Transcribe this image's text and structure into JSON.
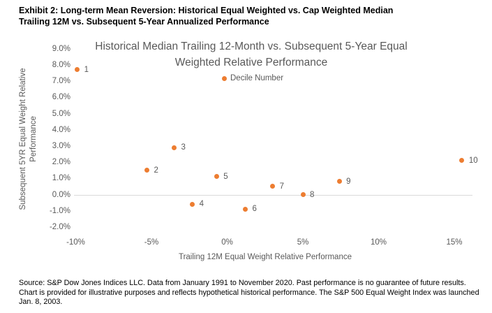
{
  "header": {
    "line1": "Exhibit 2: Long-term Mean Reversion: Historical Equal Weighted vs. Cap Weighted Median",
    "line2": "Trailing 12M vs. Subsequent 5-Year Annualized Performance"
  },
  "chart_data": {
    "type": "scatter",
    "title_line1": "Historical Median Trailing 12-Month vs. Subsequent 5-Year Equal",
    "title_line2": "Weighted Relative Performance",
    "xlabel": "Trailing 12M Equal Weight Relative Performance",
    "ylabel": "Subsequent 5YR Equal Weight Relative Performance",
    "legend_label": "Decile Number",
    "legend_position": "inside-top-center",
    "grid": "horizontal zero line only",
    "xlim": [
      -10,
      15
    ],
    "ylim": [
      -2,
      9
    ],
    "x_ticks": [
      {
        "label": "-10%",
        "value": -10
      },
      {
        "label": "-5%",
        "value": -5
      },
      {
        "label": "0%",
        "value": 0
      },
      {
        "label": "5%",
        "value": 5
      },
      {
        "label": "10%",
        "value": 10
      },
      {
        "label": "15%",
        "value": 15
      }
    ],
    "y_ticks": [
      {
        "label": "9.0%",
        "value": 9
      },
      {
        "label": "8.0%",
        "value": 8
      },
      {
        "label": "7.0%",
        "value": 7
      },
      {
        "label": "6.0%",
        "value": 6
      },
      {
        "label": "5.0%",
        "value": 5
      },
      {
        "label": "4.0%",
        "value": 4
      },
      {
        "label": "3.0%",
        "value": 3
      },
      {
        "label": "2.0%",
        "value": 2
      },
      {
        "label": "1.0%",
        "value": 1
      },
      {
        "label": "0.0%",
        "value": 0
      },
      {
        "label": "-1.0%",
        "value": -1
      },
      {
        "label": "-2.0%",
        "value": -2
      }
    ],
    "marker_color": "#ED7D31",
    "points": [
      {
        "decile": 1,
        "x": -9.9,
        "y": 7.7
      },
      {
        "decile": 2,
        "x": -5.3,
        "y": 1.5
      },
      {
        "decile": 3,
        "x": -3.5,
        "y": 2.9
      },
      {
        "decile": 4,
        "x": -2.3,
        "y": -0.6
      },
      {
        "decile": 5,
        "x": -0.7,
        "y": 1.1
      },
      {
        "decile": 6,
        "x": 1.2,
        "y": -0.9
      },
      {
        "decile": 7,
        "x": 3.0,
        "y": 0.5
      },
      {
        "decile": 8,
        "x": 5.0,
        "y": 0.0
      },
      {
        "decile": 9,
        "x": 7.4,
        "y": 0.8
      },
      {
        "decile": 10,
        "x": 15.5,
        "y": 2.1
      }
    ]
  },
  "footer": {
    "text": "Source: S&P Dow Jones Indices LLC. Data from January 1991 to November 2020. Past performance is no guarantee of future results. Chart is provided for illustrative purposes and reflects hypothetical historical performance. The S&P 500 Equal Weight Index was launched Jan. 8, 2003."
  },
  "colors": {
    "marker": "#ED7D31",
    "axis_text": "#595959",
    "chart_title_text": "#595959",
    "zero_line": "#D9D9D9",
    "heading_text": "#000000"
  }
}
